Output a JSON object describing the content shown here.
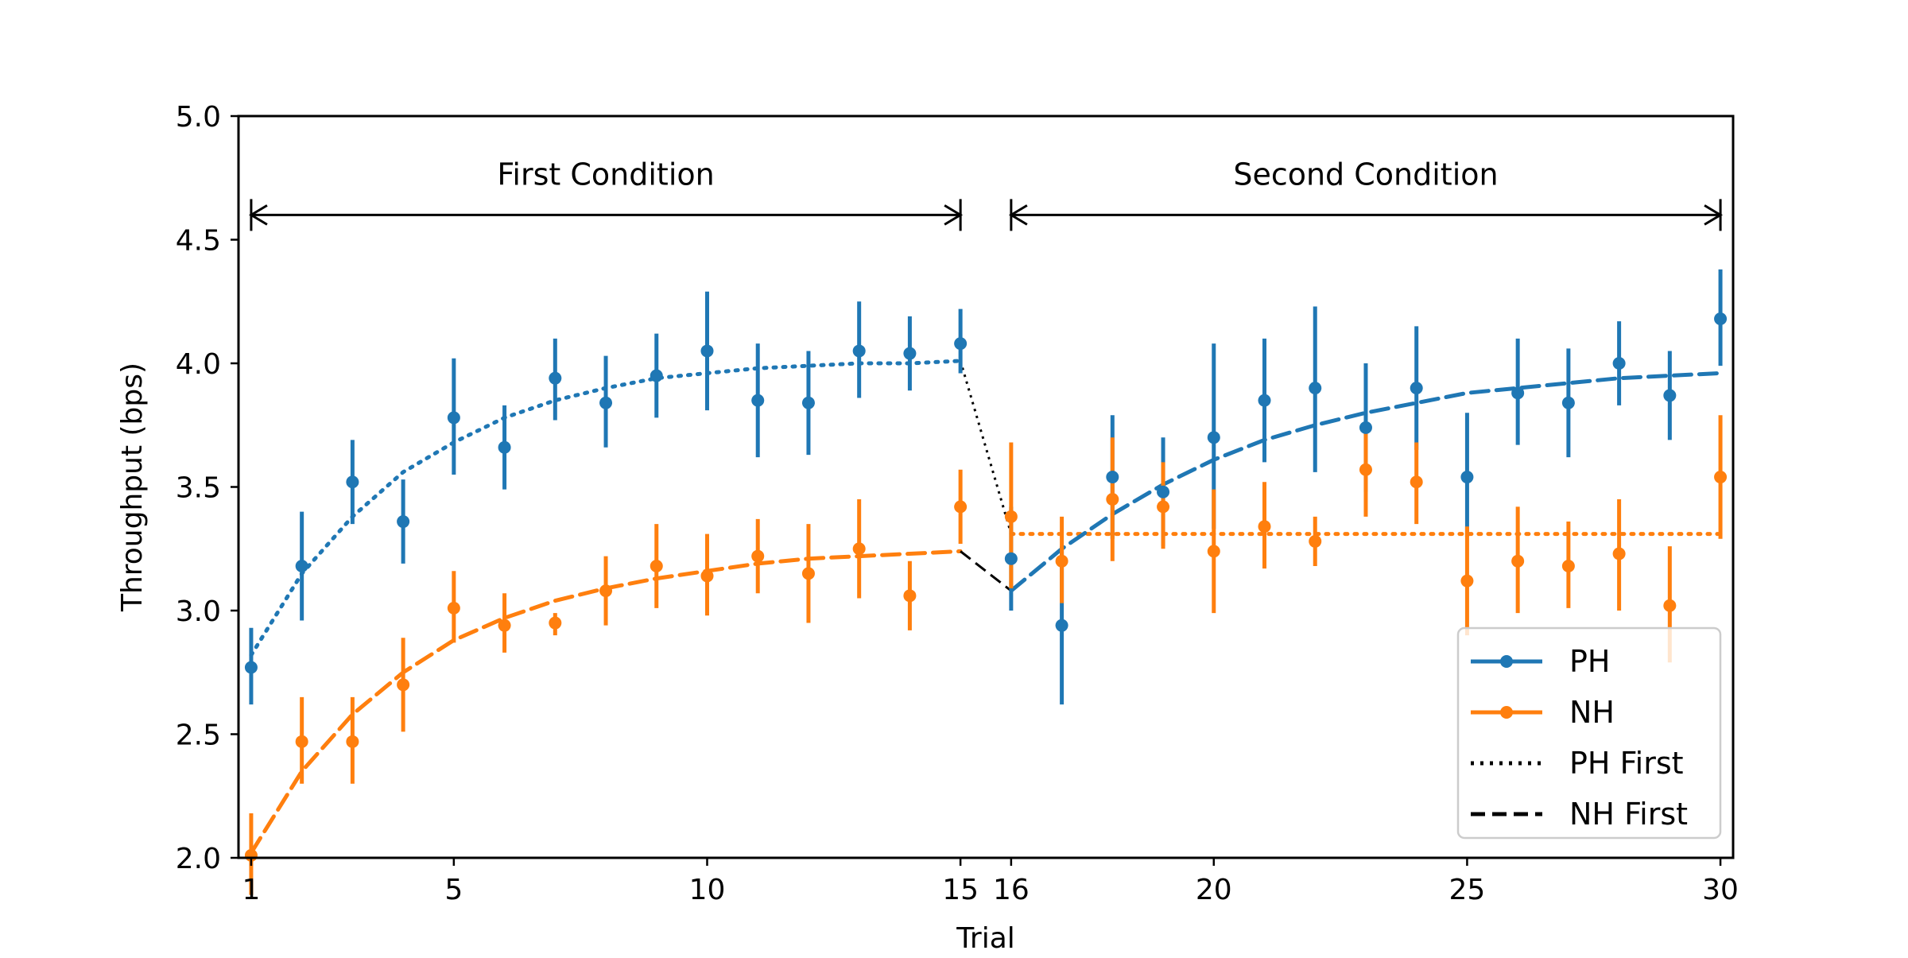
{
  "chart_data": {
    "type": "line",
    "title": "",
    "xlabel": "Trial",
    "ylabel": "Throughput (bps)",
    "xlim": [
      0.75,
      30.25
    ],
    "ylim": [
      2.0,
      5.0
    ],
    "grid": false,
    "legend_position": "lower-right",
    "xticks": [
      1,
      5,
      10,
      15,
      16,
      20,
      25,
      30
    ],
    "yticks": [
      2.0,
      2.5,
      3.0,
      3.5,
      4.0,
      4.5,
      5.0
    ],
    "x": [
      1,
      2,
      3,
      4,
      5,
      6,
      7,
      8,
      9,
      10,
      11,
      12,
      13,
      14,
      15,
      16,
      17,
      18,
      19,
      20,
      21,
      22,
      23,
      24,
      25,
      26,
      27,
      28,
      29,
      30
    ],
    "series": [
      {
        "name": "PH",
        "color": "#1f77b4",
        "marker": "circle",
        "values": [
          2.77,
          3.18,
          3.52,
          3.36,
          3.78,
          3.66,
          3.94,
          3.84,
          3.95,
          4.05,
          3.85,
          3.84,
          4.05,
          4.04,
          4.08,
          3.21,
          2.94,
          3.54,
          3.48,
          3.7,
          3.85,
          3.9,
          3.74,
          3.9,
          3.54,
          3.88,
          3.84,
          4.0,
          3.87,
          4.18
        ],
        "err_low": [
          2.62,
          2.96,
          3.35,
          3.19,
          3.55,
          3.49,
          3.77,
          3.66,
          3.78,
          3.81,
          3.62,
          3.63,
          3.86,
          3.89,
          3.96,
          3.0,
          2.62,
          3.29,
          3.26,
          3.33,
          3.6,
          3.56,
          3.48,
          3.65,
          3.3,
          3.67,
          3.62,
          3.83,
          3.69,
          3.99
        ],
        "err_high": [
          2.93,
          3.4,
          3.69,
          3.53,
          4.02,
          3.83,
          4.1,
          4.03,
          4.12,
          4.29,
          4.08,
          4.05,
          4.25,
          4.19,
          4.22,
          3.42,
          3.26,
          3.79,
          3.7,
          4.08,
          4.1,
          4.23,
          4.0,
          4.15,
          3.8,
          4.1,
          4.06,
          4.17,
          4.05,
          4.38
        ]
      },
      {
        "name": "NH",
        "color": "#ff7f0e",
        "marker": "circle",
        "values": [
          2.01,
          2.47,
          2.47,
          2.7,
          3.01,
          2.94,
          2.95,
          3.08,
          3.18,
          3.14,
          3.22,
          3.15,
          3.25,
          3.06,
          3.42,
          3.38,
          3.2,
          3.45,
          3.42,
          3.24,
          3.34,
          3.28,
          3.57,
          3.52,
          3.12,
          3.2,
          3.18,
          3.23,
          3.02,
          3.54
        ],
        "err_low": [
          1.85,
          2.3,
          2.3,
          2.51,
          2.87,
          2.83,
          2.9,
          2.94,
          3.01,
          2.98,
          3.07,
          2.95,
          3.05,
          2.92,
          3.27,
          3.09,
          3.03,
          3.2,
          3.25,
          2.99,
          3.17,
          3.18,
          3.38,
          3.35,
          2.9,
          2.99,
          3.01,
          3.0,
          2.79,
          3.29
        ],
        "err_high": [
          2.18,
          2.65,
          2.65,
          2.89,
          3.16,
          3.07,
          2.99,
          3.22,
          3.35,
          3.31,
          3.37,
          3.35,
          3.45,
          3.2,
          3.57,
          3.68,
          3.38,
          3.7,
          3.6,
          3.49,
          3.52,
          3.38,
          3.76,
          3.68,
          3.34,
          3.42,
          3.36,
          3.45,
          3.26,
          3.79
        ]
      }
    ],
    "fits": [
      {
        "name": "PH First",
        "style": "dotted",
        "segments": [
          {
            "color": "#1f77b4",
            "x": [
              1,
              2,
              3,
              4,
              5,
              6,
              7,
              8,
              9,
              10,
              11,
              12,
              13,
              14,
              15
            ],
            "y": [
              2.82,
              3.15,
              3.38,
              3.56,
              3.68,
              3.78,
              3.85,
              3.9,
              3.94,
              3.96,
              3.98,
              3.99,
              4.0,
              4.0,
              4.01
            ]
          },
          {
            "color": "#000000",
            "x": [
              15,
              16
            ],
            "y": [
              4.01,
              3.31
            ]
          },
          {
            "color": "#ff7f0e",
            "x": [
              16,
              30
            ],
            "y": [
              3.31,
              3.31
            ]
          }
        ]
      },
      {
        "name": "NH First",
        "style": "dashed",
        "segments": [
          {
            "color": "#ff7f0e",
            "x": [
              1,
              2,
              3,
              4,
              5,
              6,
              7,
              8,
              9,
              10,
              11,
              12,
              13,
              14,
              15
            ],
            "y": [
              2.02,
              2.35,
              2.58,
              2.75,
              2.88,
              2.97,
              3.04,
              3.09,
              3.13,
              3.16,
              3.19,
              3.21,
              3.22,
              3.23,
              3.24
            ]
          },
          {
            "color": "#000000",
            "x": [
              15,
              16
            ],
            "y": [
              3.24,
              3.08
            ]
          },
          {
            "color": "#1f77b4",
            "x": [
              16,
              17,
              18,
              19,
              20,
              21,
              22,
              23,
              24,
              25,
              26,
              27,
              28,
              29,
              30
            ],
            "y": [
              3.08,
              3.25,
              3.39,
              3.51,
              3.61,
              3.69,
              3.75,
              3.8,
              3.84,
              3.88,
              3.9,
              3.92,
              3.94,
              3.95,
              3.96
            ]
          }
        ]
      }
    ],
    "annotations": [
      {
        "text": "First Condition",
        "x_start": 1,
        "x_end": 15,
        "y": 4.6
      },
      {
        "text": "Second Condition",
        "x_start": 16,
        "x_end": 30,
        "y": 4.6
      }
    ],
    "legend": [
      {
        "label": "PH",
        "color": "#1f77b4",
        "style": "solid-marker"
      },
      {
        "label": "NH",
        "color": "#ff7f0e",
        "style": "solid-marker"
      },
      {
        "label": "PH First",
        "color": "#000000",
        "style": "dotted"
      },
      {
        "label": "NH First",
        "color": "#000000",
        "style": "dashed"
      }
    ]
  }
}
